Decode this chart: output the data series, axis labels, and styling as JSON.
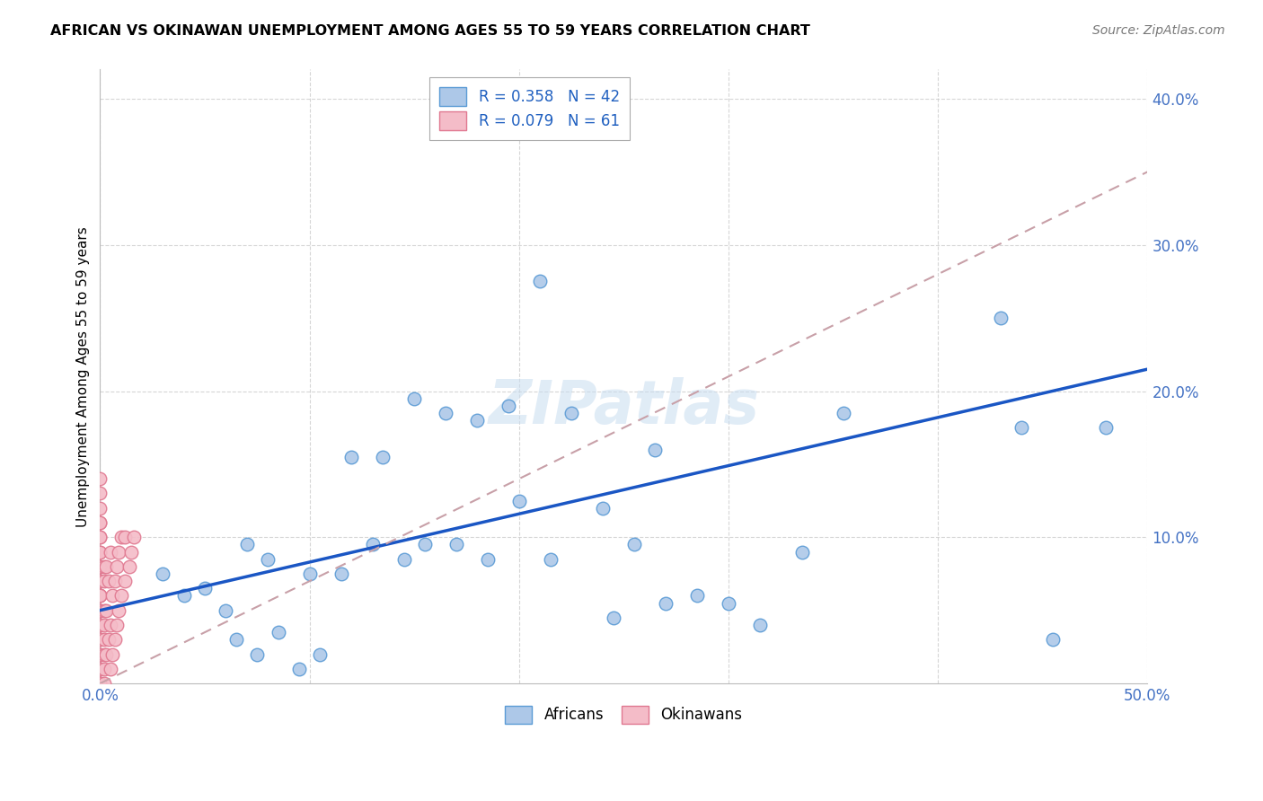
{
  "title": "AFRICAN VS OKINAWAN UNEMPLOYMENT AMONG AGES 55 TO 59 YEARS CORRELATION CHART",
  "source": "Source: ZipAtlas.com",
  "ylabel": "Unemployment Among Ages 55 to 59 years",
  "xlim": [
    0.0,
    0.5
  ],
  "ylim": [
    0.0,
    0.42
  ],
  "xticks": [
    0.0,
    0.1,
    0.2,
    0.3,
    0.4,
    0.5
  ],
  "yticks": [
    0.1,
    0.2,
    0.3,
    0.4
  ],
  "ytick_labels": [
    "10.0%",
    "20.0%",
    "30.0%",
    "40.0%"
  ],
  "xtick_labels": [
    "0.0%",
    "",
    "",
    "",
    "",
    "50.0%"
  ],
  "african_color": "#adc8e8",
  "african_edge_color": "#5b9bd5",
  "okinawan_color": "#f4bcc8",
  "okinawan_edge_color": "#e07890",
  "trend_african_color": "#1a56c4",
  "trend_okinawan_color": "#c8a0a8",
  "watermark": "ZIPatlas",
  "africans_x": [
    0.21,
    0.07,
    0.08,
    0.1,
    0.115,
    0.13,
    0.145,
    0.155,
    0.17,
    0.185,
    0.2,
    0.215,
    0.225,
    0.24,
    0.255,
    0.27,
    0.285,
    0.3,
    0.315,
    0.335,
    0.355,
    0.43,
    0.455,
    0.03,
    0.04,
    0.05,
    0.06,
    0.065,
    0.075,
    0.085,
    0.095,
    0.105,
    0.12,
    0.135,
    0.15,
    0.165,
    0.18,
    0.195,
    0.245,
    0.265,
    0.48,
    0.44
  ],
  "africans_y": [
    0.275,
    0.095,
    0.085,
    0.075,
    0.075,
    0.095,
    0.085,
    0.095,
    0.095,
    0.085,
    0.125,
    0.085,
    0.185,
    0.12,
    0.095,
    0.055,
    0.06,
    0.055,
    0.04,
    0.09,
    0.185,
    0.25,
    0.03,
    0.075,
    0.06,
    0.065,
    0.05,
    0.03,
    0.02,
    0.035,
    0.01,
    0.02,
    0.155,
    0.155,
    0.195,
    0.185,
    0.18,
    0.19,
    0.045,
    0.16,
    0.175,
    0.175
  ],
  "okinawans_x": [
    0.0,
    0.0,
    0.0,
    0.0,
    0.0,
    0.0,
    0.0,
    0.0,
    0.0,
    0.0,
    0.0,
    0.0,
    0.0,
    0.0,
    0.0,
    0.0,
    0.0,
    0.0,
    0.0,
    0.0,
    0.0,
    0.0,
    0.0,
    0.0,
    0.0,
    0.0,
    0.0,
    0.0,
    0.0,
    0.0,
    0.002,
    0.002,
    0.002,
    0.002,
    0.002,
    0.002,
    0.002,
    0.002,
    0.003,
    0.003,
    0.003,
    0.004,
    0.004,
    0.005,
    0.005,
    0.005,
    0.006,
    0.006,
    0.007,
    0.007,
    0.008,
    0.008,
    0.009,
    0.009,
    0.01,
    0.01,
    0.012,
    0.012,
    0.014,
    0.015,
    0.016
  ],
  "okinawans_y": [
    0.0,
    0.0,
    0.01,
    0.01,
    0.02,
    0.02,
    0.03,
    0.03,
    0.04,
    0.04,
    0.05,
    0.05,
    0.05,
    0.06,
    0.06,
    0.06,
    0.07,
    0.07,
    0.07,
    0.08,
    0.08,
    0.09,
    0.09,
    0.1,
    0.1,
    0.11,
    0.11,
    0.12,
    0.13,
    0.14,
    0.0,
    0.01,
    0.02,
    0.03,
    0.04,
    0.05,
    0.07,
    0.08,
    0.02,
    0.05,
    0.08,
    0.03,
    0.07,
    0.01,
    0.04,
    0.09,
    0.02,
    0.06,
    0.03,
    0.07,
    0.04,
    0.08,
    0.05,
    0.09,
    0.06,
    0.1,
    0.07,
    0.1,
    0.08,
    0.09,
    0.1
  ],
  "trend_african_x0": 0.0,
  "trend_african_y0": 0.05,
  "trend_african_x1": 0.5,
  "trend_african_y1": 0.215,
  "trend_okinawan_x0": 0.0,
  "trend_okinawan_y0": 0.0,
  "trend_okinawan_x1": 0.5,
  "trend_okinawan_y1": 0.35
}
